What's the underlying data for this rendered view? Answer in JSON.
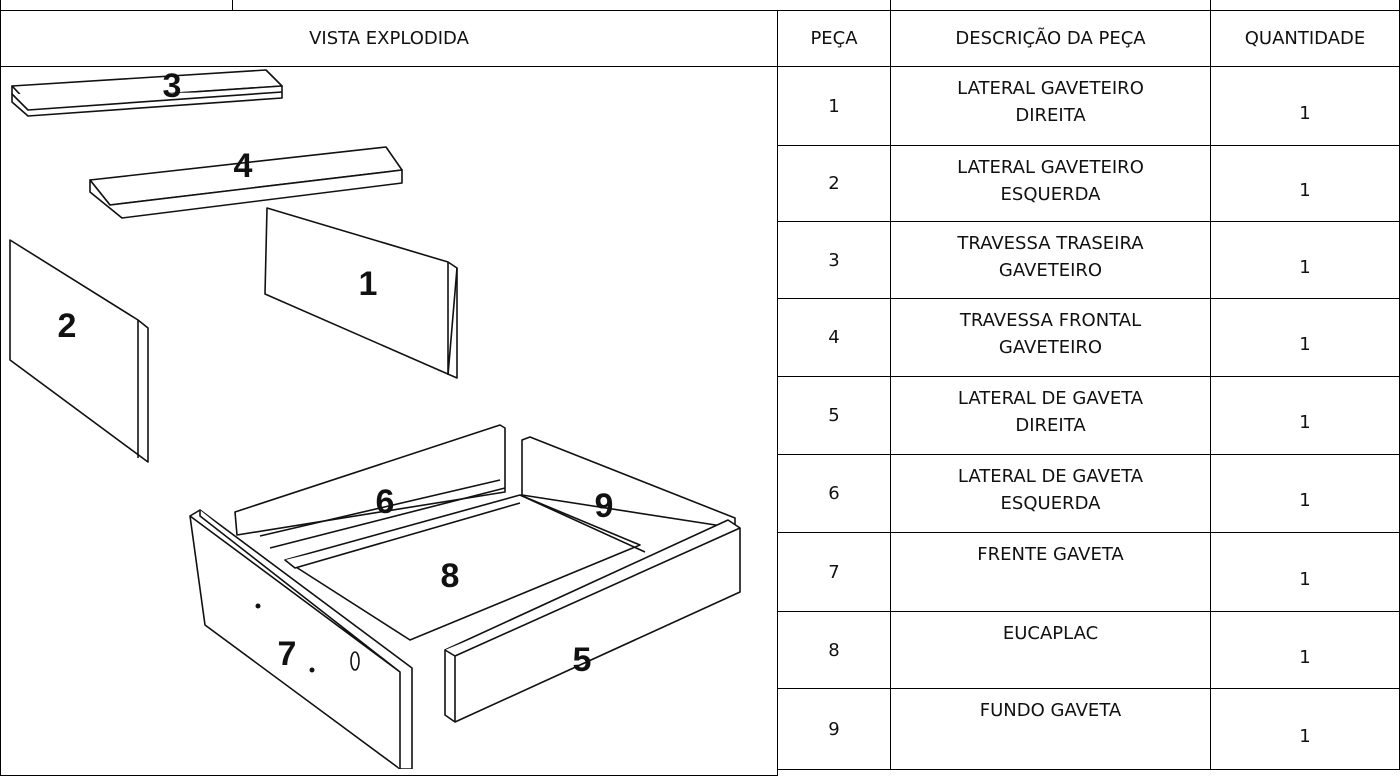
{
  "header": {
    "view_title": "VISTA EXPLODIDA",
    "columns": [
      "PEÇA",
      "DESCRIÇÃO DA PEÇA",
      "QUANTIDADE"
    ]
  },
  "table": {
    "rows": [
      [
        "1",
        "LATERAL GAVETEIRO DIREITA",
        "1"
      ],
      [
        "2",
        "LATERAL GAVETEIRO ESQUERDA",
        "1"
      ],
      [
        "3",
        "TRAVESSA TRASEIRA GAVETEIRO",
        "1"
      ],
      [
        "4",
        "TRAVESSA FRONTAL GAVETEIRO",
        "1"
      ],
      [
        "5",
        "LATERAL DE GAVETA DIREITA",
        "1"
      ],
      [
        "6",
        "LATERAL DE GAVETA ESQUERDA",
        "1"
      ],
      [
        "7",
        "FRENTE GAVETA",
        "1"
      ],
      [
        "8",
        "EUCAPLAC",
        "1"
      ],
      [
        "9",
        "FUNDO GAVETA",
        "1"
      ]
    ]
  },
  "diagram": {
    "labels": [
      "3",
      "4",
      "1",
      "2",
      "6",
      "9",
      "8",
      "7",
      "5"
    ]
  }
}
